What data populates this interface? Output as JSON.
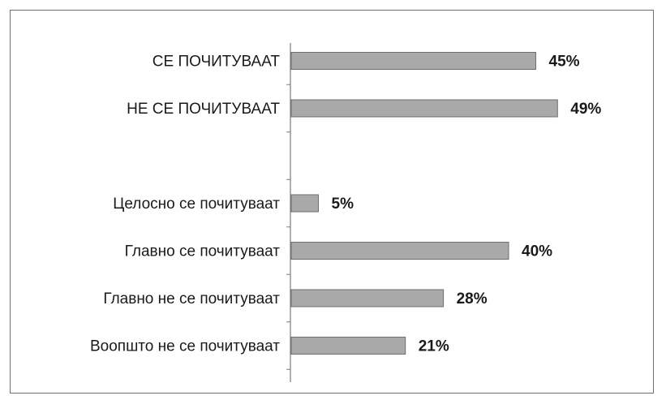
{
  "chart_data": {
    "type": "bar",
    "orientation": "horizontal",
    "categories": [
      "СЕ ПОЧИТУВААТ",
      "НЕ СЕ ПОЧИТУВААТ",
      "",
      "Целосно се почитуваат",
      "Главно се почитуваат",
      "Главно не се почитуваат",
      "Воопшто не се почитуваат"
    ],
    "values": [
      45,
      49,
      null,
      5,
      40,
      28,
      21
    ],
    "value_labels": [
      "45%",
      "49%",
      "",
      "5%",
      "40%",
      "28%",
      "21%"
    ],
    "title": "",
    "xlabel": "",
    "ylabel": "",
    "xlim": [
      0,
      60
    ],
    "grid": false,
    "bar_color": "#a9a9a9",
    "bar_border_color": "#6f6f6f",
    "axis_color": "#7a7a7a"
  }
}
